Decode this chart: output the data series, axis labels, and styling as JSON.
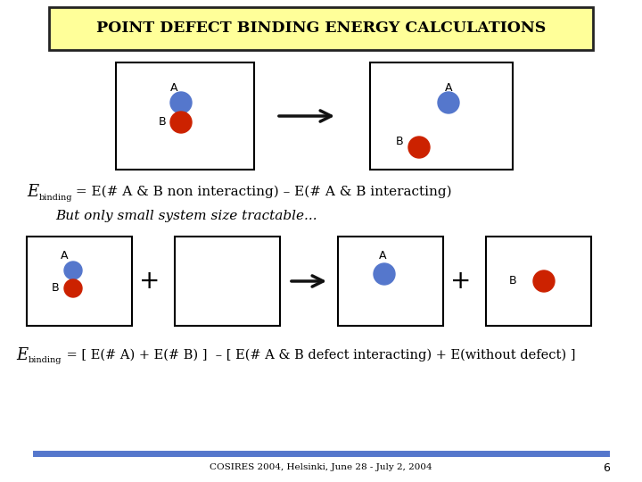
{
  "title": "POINT DEFECT BINDING ENERGY CALCULATIONS",
  "title_bg": "#FFFF99",
  "title_border": "#222222",
  "bg_color": "#FFFFFF",
  "box_edgecolor": "#000000",
  "blue_color": "#5577CC",
  "red_color": "#CC2200",
  "arrow_color": "#111111",
  "footer_text": "COSIRES 2004, Helsinki, June 28 - July 2, 2004",
  "footer_page": "6",
  "footer_line_color": "#5577CC",
  "eq1_sub": "binding",
  "eq1_main": " = E(# A & B non interacting) – E(# A & B interacting)",
  "eq2_main": " = [ E(# A) + E(# B) ]  – [ E(# A & B defect interacting) + E(without defect) ]",
  "note": "But only small system size tractable..."
}
